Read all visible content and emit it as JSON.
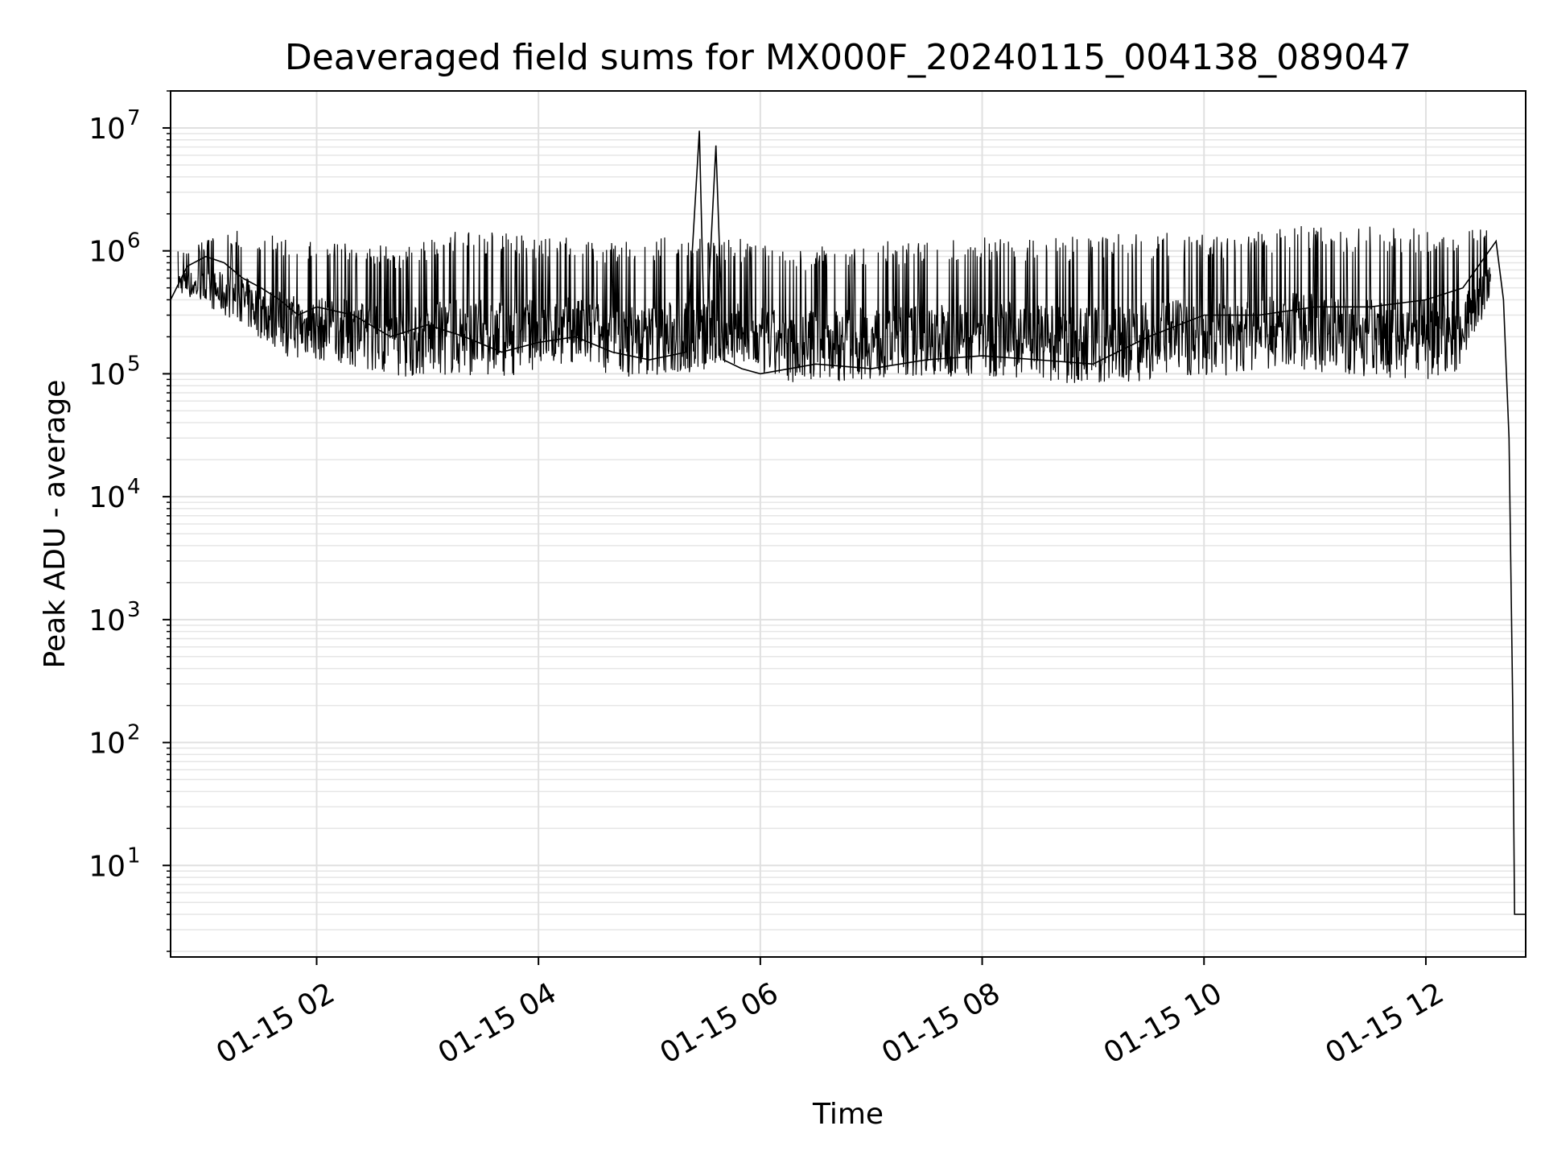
{
  "chart_data": {
    "type": "line",
    "title": "Deaveraged field sums for MX000F_20240115_004138_089047",
    "xlabel": "Time",
    "ylabel": "Peak ADU - average",
    "yscale": "log",
    "ylim": [
      1.8,
      20000000
    ],
    "xlim": [
      "2024-01-15 00:41",
      "2024-01-15 12:54"
    ],
    "grid": true,
    "legend": "none",
    "line_color": "#000000",
    "x_ticks": [
      {
        "value": "2024-01-15 02:00",
        "label": "01-15 02"
      },
      {
        "value": "2024-01-15 04:00",
        "label": "01-15 04"
      },
      {
        "value": "2024-01-15 06:00",
        "label": "01-15 06"
      },
      {
        "value": "2024-01-15 08:00",
        "label": "01-15 08"
      },
      {
        "value": "2024-01-15 10:00",
        "label": "01-15 10"
      },
      {
        "value": "2024-01-15 12:00",
        "label": "01-15 12"
      }
    ],
    "y_ticks": [
      {
        "value": 10,
        "base": "10",
        "exp": "1"
      },
      {
        "value": 100,
        "base": "10",
        "exp": "2"
      },
      {
        "value": 1000,
        "base": "10",
        "exp": "3"
      },
      {
        "value": 10000,
        "base": "10",
        "exp": "4"
      },
      {
        "value": 100000,
        "base": "10",
        "exp": "5"
      },
      {
        "value": 1000000,
        "base": "10",
        "exp": "6"
      },
      {
        "value": 10000000,
        "base": "10",
        "exp": "7"
      }
    ],
    "series": [
      {
        "x": [
          "2024-01-15 00:41",
          "2024-01-15 00:50",
          "2024-01-15 01:00",
          "2024-01-15 01:10",
          "2024-01-15 01:20",
          "2024-01-15 01:30",
          "2024-01-15 01:40",
          "2024-01-15 01:50",
          "2024-01-15 02:00",
          "2024-01-15 02:20",
          "2024-01-15 02:40",
          "2024-01-15 03:00",
          "2024-01-15 03:20",
          "2024-01-15 03:40",
          "2024-01-15 04:00",
          "2024-01-15 04:20",
          "2024-01-15 04:40",
          "2024-01-15 05:00",
          "2024-01-15 05:20",
          "2024-01-15 05:27",
          "2024-01-15 05:30",
          "2024-01-15 05:36",
          "2024-01-15 05:40",
          "2024-01-15 05:50",
          "2024-01-15 06:00",
          "2024-01-15 06:30",
          "2024-01-15 07:00",
          "2024-01-15 07:30",
          "2024-01-15 08:00",
          "2024-01-15 08:30",
          "2024-01-15 09:00",
          "2024-01-15 09:30",
          "2024-01-15 10:00",
          "2024-01-15 10:30",
          "2024-01-15 11:00",
          "2024-01-15 11:30",
          "2024-01-15 12:00",
          "2024-01-15 12:20",
          "2024-01-15 12:38",
          "2024-01-15 12:42",
          "2024-01-15 12:45",
          "2024-01-15 12:47",
          "2024-01-15 12:48",
          "2024-01-15 12:54"
        ],
        "values": [
          400000,
          750000,
          900000,
          800000,
          600000,
          500000,
          400000,
          300000,
          350000,
          300000,
          200000,
          250000,
          200000,
          150000,
          180000,
          200000,
          150000,
          130000,
          150000,
          9500000,
          120000,
          7200000,
          130000,
          110000,
          100000,
          120000,
          110000,
          130000,
          140000,
          130000,
          120000,
          200000,
          300000,
          300000,
          350000,
          350000,
          400000,
          500000,
          1200000,
          400000,
          30000,
          200,
          4,
          4
        ],
        "envelope": {
          "x": [
            "2024-01-15 00:45",
            "2024-01-15 01:15",
            "2024-01-15 01:45",
            "2024-01-15 02:15",
            "2024-01-15 02:45",
            "2024-01-15 03:15",
            "2024-01-15 03:45",
            "2024-01-15 04:15",
            "2024-01-15 04:45",
            "2024-01-15 05:15",
            "2024-01-15 05:45",
            "2024-01-15 06:15",
            "2024-01-15 06:45",
            "2024-01-15 07:15",
            "2024-01-15 07:45",
            "2024-01-15 08:15",
            "2024-01-15 08:45",
            "2024-01-15 09:15",
            "2024-01-15 09:45",
            "2024-01-15 10:15",
            "2024-01-15 10:45",
            "2024-01-15 11:15",
            "2024-01-15 11:45",
            "2024-01-15 12:15",
            "2024-01-15 12:35"
          ],
          "low": [
            400000,
            200000,
            90000,
            80000,
            60000,
            60000,
            60000,
            80000,
            60000,
            60000,
            70000,
            55000,
            55000,
            60000,
            60000,
            60000,
            50000,
            50000,
            60000,
            60000,
            70000,
            60000,
            55000,
            55000,
            300000
          ],
          "high": [
            1000000,
            1500000,
            1300000,
            1200000,
            1100000,
            1500000,
            1400000,
            1300000,
            1200000,
            1400000,
            1300000,
            1000000,
            1200000,
            1200000,
            1300000,
            1300000,
            1300000,
            1400000,
            1400000,
            1300000,
            1600000,
            1600000,
            1600000,
            1500000,
            1500000
          ]
        }
      }
    ]
  }
}
